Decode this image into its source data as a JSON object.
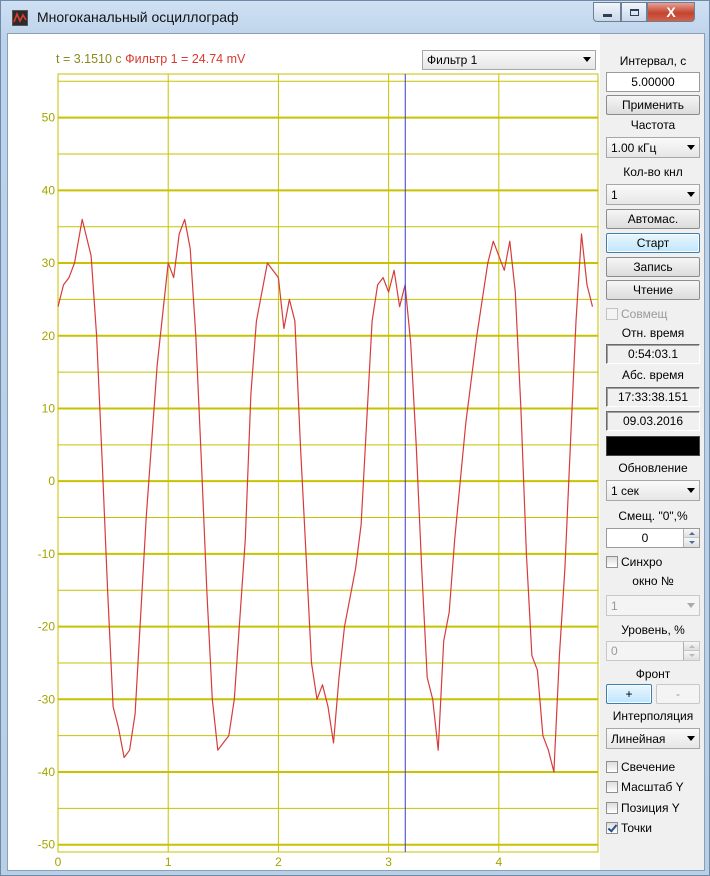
{
  "window": {
    "title": "Многоканальный осциллограф",
    "close_glyph": "X"
  },
  "readout": {
    "time": "t = 3.1510 с",
    "filter": "Фильтр 1 =  24.74 mV"
  },
  "channel_select": {
    "value": "Фильтр 1"
  },
  "controls": {
    "interval_label": "Интервал, с",
    "interval_value": "5.00000",
    "apply_label": "Применить",
    "frequency_label": "Частота",
    "frequency_value": "1.00 кГц",
    "channels_label": "Кол-во кнл",
    "channels_value": "1",
    "auto_label": "Автомас.",
    "start_label": "Старт",
    "record_label": "Запись",
    "read_label": "Чтение",
    "combine_label": "Совмещ",
    "rel_time_label": "Отн. время",
    "rel_time_value": "0:54:03.1",
    "abs_time_label": "Абс. время",
    "abs_time_value": "17:33:38.151",
    "date_value": "09.03.2016",
    "update_label": "Обновление",
    "update_value": "1 сек",
    "offset_label": "Смещ. \"0\",%",
    "offset_value": "0",
    "sync_label": "Синхро",
    "window_no_label": "окно №",
    "window_no_value": "1",
    "level_label": "Уровень, %",
    "level_value": "0",
    "front_label": "Фронт",
    "front_plus": "+",
    "front_minus": "-",
    "interp_label": "Интерполяция",
    "interp_value": "Линейная",
    "glow_label": "Свечение",
    "scale_y_label": "Масштаб Y",
    "position_y_label": "Позиция Y",
    "points_label": "Точки",
    "glow_checked": false,
    "scale_y_checked": false,
    "position_y_checked": false,
    "points_checked": true,
    "sync_checked": false,
    "combine_checked": false
  },
  "colors": {
    "grid": "#c8c200",
    "trace": "#d63c3c",
    "cursor": "#3a3ad0",
    "axis_text": "#a4a400",
    "readout_time": "#8a8a1a",
    "readout_value": "#d83a2e"
  },
  "chart_data": {
    "type": "line",
    "xlabel": "",
    "ylabel": "",
    "xlim": [
      0,
      4.9
    ],
    "ylim": [
      -51,
      56
    ],
    "x_ticks": [
      0,
      1,
      2,
      3,
      4
    ],
    "y_ticks": [
      50,
      40,
      30,
      20,
      10,
      0,
      -10,
      -20,
      -30,
      -40,
      -50
    ],
    "grid": true,
    "cursor_x": 3.151,
    "series": [
      {
        "x": [
          0,
          0.05,
          0.1,
          0.15,
          0.22,
          0.3,
          0.35,
          0.4,
          0.45,
          0.5,
          0.55,
          0.6,
          0.65,
          0.7,
          0.8,
          0.9,
          1.0,
          1.05,
          1.1,
          1.15,
          1.2,
          1.25,
          1.3,
          1.35,
          1.4,
          1.45,
          1.5,
          1.55,
          1.6,
          1.7,
          1.75,
          1.8,
          1.9,
          2.0,
          2.05,
          2.1,
          2.15,
          2.2,
          2.25,
          2.3,
          2.35,
          2.4,
          2.45,
          2.5,
          2.55,
          2.6,
          2.7,
          2.75,
          2.8,
          2.85,
          2.9,
          2.95,
          3.0,
          3.05,
          3.1,
          3.15,
          3.2,
          3.25,
          3.3,
          3.35,
          3.4,
          3.45,
          3.5,
          3.55,
          3.6,
          3.7,
          3.8,
          3.9,
          3.95,
          4.0,
          4.05,
          4.1,
          4.15,
          4.2,
          4.25,
          4.3,
          4.35,
          4.4,
          4.45,
          4.5,
          4.55,
          4.6,
          4.65,
          4.7,
          4.75,
          4.8,
          4.85
        ],
        "y": [
          24,
          27,
          28,
          30,
          36,
          31,
          20,
          3,
          -15,
          -31,
          -34,
          -38,
          -37,
          -32,
          -5,
          16,
          30,
          28,
          34,
          36,
          32,
          20,
          3,
          -15,
          -30,
          -37,
          -36,
          -35,
          -30,
          -8,
          12,
          22,
          30,
          28,
          21,
          25,
          22,
          5,
          -10,
          -25,
          -30,
          -28,
          -31,
          -36,
          -27,
          -20,
          -12,
          -6,
          8,
          22,
          27,
          28,
          26,
          29,
          24,
          27,
          19,
          5,
          -12,
          -27,
          -30,
          -37,
          -22,
          -18,
          -8,
          8,
          20,
          30,
          33,
          31,
          29,
          33,
          26,
          10,
          -10,
          -24,
          -26,
          -35,
          -37,
          -40,
          -24,
          -12,
          5,
          22,
          34,
          27,
          24
        ]
      }
    ]
  }
}
